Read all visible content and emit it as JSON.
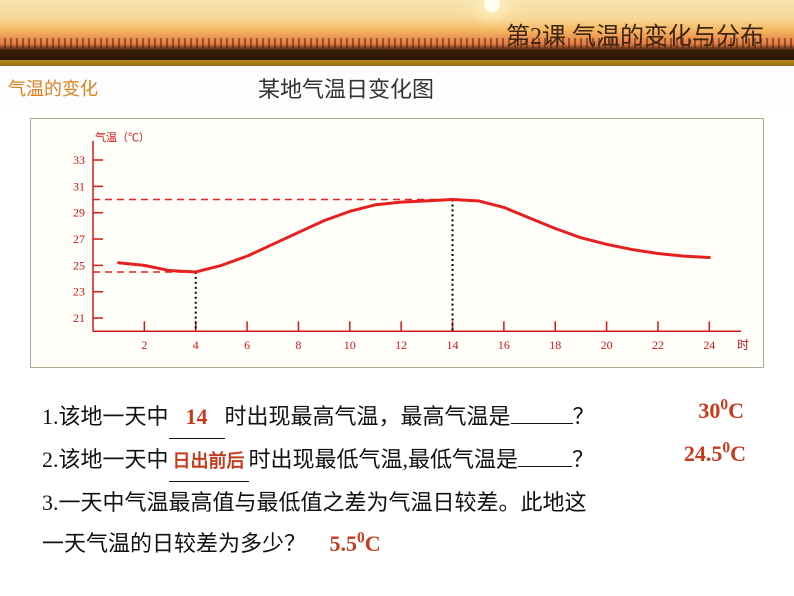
{
  "header": {
    "lesson_title": "第2课 气温的变化与分布",
    "subtitle_left": "气温的变化",
    "subtitle_center": "某地气温日变化图"
  },
  "chart": {
    "type": "line",
    "y_axis_label": "气温（℃）",
    "x_axis_label": "时",
    "y_ticks": [
      21,
      23,
      25,
      27,
      29,
      31,
      33
    ],
    "x_ticks": [
      2,
      4,
      6,
      8,
      10,
      12,
      14,
      16,
      18,
      20,
      22,
      24
    ],
    "ylim": [
      20,
      34
    ],
    "xlim": [
      0,
      25
    ],
    "data_points": [
      [
        1,
        25.2
      ],
      [
        2,
        25.0
      ],
      [
        3,
        24.6
      ],
      [
        4,
        24.5
      ],
      [
        5,
        25.0
      ],
      [
        6,
        25.7
      ],
      [
        7,
        26.6
      ],
      [
        8,
        27.5
      ],
      [
        9,
        28.4
      ],
      [
        10,
        29.1
      ],
      [
        11,
        29.6
      ],
      [
        12,
        29.8
      ],
      [
        13,
        29.9
      ],
      [
        14,
        30.0
      ],
      [
        15,
        29.9
      ],
      [
        16,
        29.4
      ],
      [
        17,
        28.6
      ],
      [
        18,
        27.8
      ],
      [
        19,
        27.1
      ],
      [
        20,
        26.6
      ],
      [
        21,
        26.2
      ],
      [
        22,
        25.9
      ],
      [
        23,
        25.7
      ],
      [
        24,
        25.6
      ]
    ],
    "line_color": "#e62020",
    "line_width": 3,
    "axis_color": "#d01818",
    "tick_color": "#d01818",
    "label_color": "#d01818",
    "label_fontsize": 12,
    "background_color": "#fffef8",
    "guide_lines": {
      "dotted_v_color": "#000000",
      "dashed_h_color": "#e62020",
      "verticals_at_x": [
        4,
        14
      ],
      "horizontals_at_y": [
        24.5,
        30.0
      ]
    }
  },
  "questions": {
    "q1_pre": "1.该地一天中",
    "q1_blank1": "14",
    "q1_mid": "时出现最高气温，最高气温是",
    "q1_blank2_display": "30",
    "q1_unit": "℃",
    "q1_end": "？",
    "q2_pre": "2.该地一天中",
    "q2_blank1": "日出前后",
    "q2_mid": "时出现最低气温,最低气温是",
    "q2_blank2_display": "24.5",
    "q2_end": "？",
    "q3_pre": "3.一天中气温最高值与最低值之差为气温日较差。此地这",
    "q3_line2": "一天气温的日较差为多少？",
    "q3_answer": "5.5"
  }
}
